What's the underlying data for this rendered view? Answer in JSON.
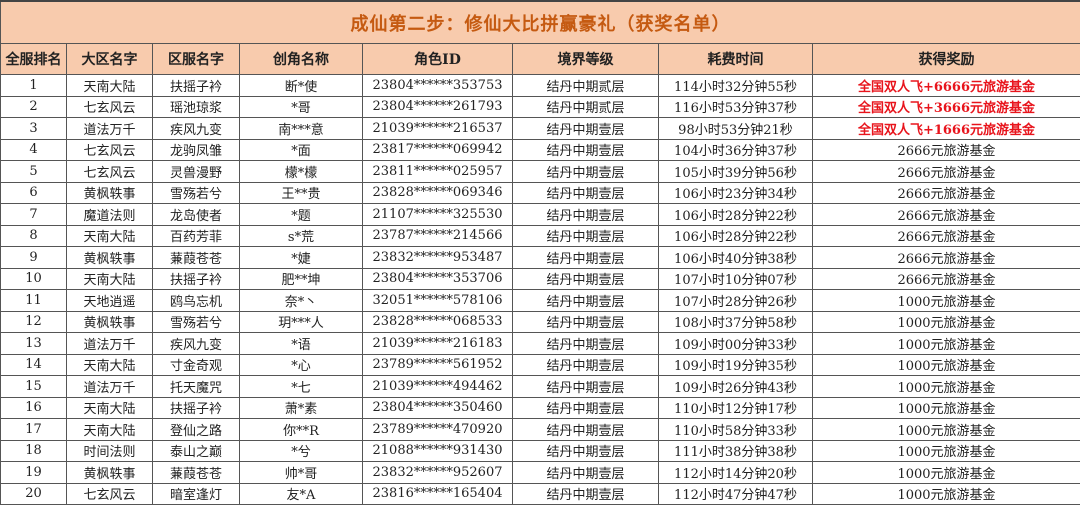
{
  "title": "成仙第二步：修仙大比拼赢豪礼（获奖名单）",
  "colors": {
    "header_bg": "#f8cbad",
    "title_text": "#c55a11",
    "highlight_reward": "#e8141c"
  },
  "columns": [
    "全服排名",
    "大区名字",
    "区服名字",
    "创角名称",
    "角色ID",
    "境界等级",
    "耗费时间",
    "获得奖励"
  ],
  "rows": [
    {
      "rank": "1",
      "region": "天南大陆",
      "server": "扶摇子衿",
      "name": "断*使",
      "id": "23804******353753",
      "realm": "结丹中期贰层",
      "time": "114小时32分钟55秒",
      "reward": "全国双人飞+6666元旅游基金",
      "highlight": true
    },
    {
      "rank": "2",
      "region": "七玄风云",
      "server": "瑶池琼浆",
      "name": "*哥",
      "id": "23804******261793",
      "realm": "结丹中期贰层",
      "time": "116小时53分钟37秒",
      "reward": "全国双人飞+3666元旅游基金",
      "highlight": true
    },
    {
      "rank": "3",
      "region": "道法万千",
      "server": "疾风九变",
      "name": "南***意",
      "id": "21039******216537",
      "realm": "结丹中期壹层",
      "time": "98小时53分钟21秒",
      "reward": "全国双人飞+1666元旅游基金",
      "highlight": true
    },
    {
      "rank": "4",
      "region": "七玄风云",
      "server": "龙驹凤雏",
      "name": "*面",
      "id": "23817******069942",
      "realm": "结丹中期壹层",
      "time": "104小时36分钟37秒",
      "reward": "2666元旅游基金",
      "highlight": false
    },
    {
      "rank": "5",
      "region": "七玄风云",
      "server": "灵兽漫野",
      "name": "檬*檬",
      "id": "23811******025957",
      "realm": "结丹中期壹层",
      "time": "105小时39分钟56秒",
      "reward": "2666元旅游基金",
      "highlight": false
    },
    {
      "rank": "6",
      "region": "黄枫轶事",
      "server": "雪殇若兮",
      "name": "王**贵",
      "id": "23828******069346",
      "realm": "结丹中期壹层",
      "time": "106小时23分钟34秒",
      "reward": "2666元旅游基金",
      "highlight": false
    },
    {
      "rank": "7",
      "region": "魔道法则",
      "server": "龙岛使者",
      "name": "*题",
      "id": "21107******325530",
      "realm": "结丹中期壹层",
      "time": "106小时28分钟22秒",
      "reward": "2666元旅游基金",
      "highlight": false
    },
    {
      "rank": "8",
      "region": "天南大陆",
      "server": "百药芳菲",
      "name": "s*荒",
      "id": "23787******214566",
      "realm": "结丹中期壹层",
      "time": "106小时28分钟22秒",
      "reward": "2666元旅游基金",
      "highlight": false
    },
    {
      "rank": "9",
      "region": "黄枫轶事",
      "server": "蒹葭苍苍",
      "name": "*婕",
      "id": "23832******953487",
      "realm": "结丹中期壹层",
      "time": "106小时40分钟38秒",
      "reward": "2666元旅游基金",
      "highlight": false
    },
    {
      "rank": "10",
      "region": "天南大陆",
      "server": "扶摇子衿",
      "name": "肥**坤",
      "id": "23804******353706",
      "realm": "结丹中期壹层",
      "time": "107小时10分钟07秒",
      "reward": "2666元旅游基金",
      "highlight": false
    },
    {
      "rank": "11",
      "region": "天地逍遥",
      "server": "鸥鸟忘机",
      "name": "奈*丶",
      "id": "32051******578106",
      "realm": "结丹中期壹层",
      "time": "107小时28分钟26秒",
      "reward": "1000元旅游基金",
      "highlight": false
    },
    {
      "rank": "12",
      "region": "黄枫轶事",
      "server": "雪殇若兮",
      "name": "玥***人",
      "id": "23828******068533",
      "realm": "结丹中期壹层",
      "time": "108小时37分钟58秒",
      "reward": "1000元旅游基金",
      "highlight": false
    },
    {
      "rank": "13",
      "region": "道法万千",
      "server": "疾风九变",
      "name": "*语",
      "id": "21039******216183",
      "realm": "结丹中期壹层",
      "time": "109小时00分钟33秒",
      "reward": "1000元旅游基金",
      "highlight": false
    },
    {
      "rank": "14",
      "region": "天南大陆",
      "server": "寸金奇观",
      "name": "*心",
      "id": "23789******561952",
      "realm": "结丹中期壹层",
      "time": "109小时19分钟35秒",
      "reward": "1000元旅游基金",
      "highlight": false
    },
    {
      "rank": "15",
      "region": "道法万千",
      "server": "托天魔咒",
      "name": "*七",
      "id": "21039******494462",
      "realm": "结丹中期壹层",
      "time": "109小时26分钟43秒",
      "reward": "1000元旅游基金",
      "highlight": false
    },
    {
      "rank": "16",
      "region": "天南大陆",
      "server": "扶摇子衿",
      "name": "萧*素",
      "id": "23804******350460",
      "realm": "结丹中期壹层",
      "time": "110小时12分钟17秒",
      "reward": "1000元旅游基金",
      "highlight": false
    },
    {
      "rank": "17",
      "region": "天南大陆",
      "server": "登仙之路",
      "name": "你**R",
      "id": "23789******470920",
      "realm": "结丹中期壹层",
      "time": "110小时58分钟33秒",
      "reward": "1000元旅游基金",
      "highlight": false
    },
    {
      "rank": "18",
      "region": "时间法则",
      "server": "泰山之巅",
      "name": "*兮",
      "id": "21088******931430",
      "realm": "结丹中期壹层",
      "time": "111小时38分钟38秒",
      "reward": "1000元旅游基金",
      "highlight": false
    },
    {
      "rank": "19",
      "region": "黄枫轶事",
      "server": "蒹葭苍苍",
      "name": "帅*哥",
      "id": "23832******952607",
      "realm": "结丹中期壹层",
      "time": "112小时14分钟20秒",
      "reward": "1000元旅游基金",
      "highlight": false
    },
    {
      "rank": "20",
      "region": "七玄风云",
      "server": "暗室逢灯",
      "name": "友*A",
      "id": "23816******165404",
      "realm": "结丹中期壹层",
      "time": "112小时47分钟47秒",
      "reward": "1000元旅游基金",
      "highlight": false
    }
  ]
}
